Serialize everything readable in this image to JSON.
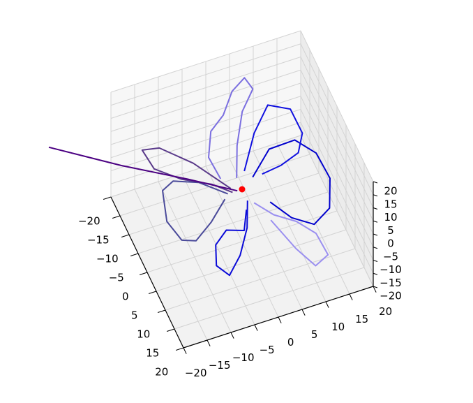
{
  "chart_data": {
    "type": "line3d",
    "xlim": [
      -20,
      20
    ],
    "ylim": [
      -20,
      20
    ],
    "zlim": [
      -20,
      20
    ],
    "xticks": [
      {
        "value": -20,
        "label": "−20"
      },
      {
        "value": -15,
        "label": "−15"
      },
      {
        "value": -10,
        "label": "−10"
      },
      {
        "value": -5,
        "label": "−5"
      },
      0,
      5,
      10,
      15,
      20
    ],
    "yticks": [
      {
        "value": -20,
        "label": "−20"
      },
      {
        "value": -15,
        "label": "−15"
      },
      {
        "value": -10,
        "label": "−10"
      },
      {
        "value": -5,
        "label": "−5"
      },
      0,
      5,
      10,
      15,
      20
    ],
    "zticks": [
      {
        "value": -20,
        "label": "−20"
      },
      {
        "value": -15,
        "label": "−15"
      },
      {
        "value": -10,
        "label": "−10"
      },
      {
        "value": -5,
        "label": "−5"
      },
      0,
      5,
      10,
      15,
      20
    ],
    "grid": true,
    "series": [
      {
        "color": "#0000cd",
        "x": [
          3,
          8,
          13,
          16,
          17,
          15,
          11,
          7,
          4
        ],
        "y": [
          -2,
          -6,
          -5,
          -1,
          4,
          9,
          11,
          9,
          5
        ],
        "z": [
          0,
          2,
          4,
          3,
          0,
          -3,
          -4,
          -2,
          0
        ]
      },
      {
        "color": "#0a0ad8",
        "x": [
          0,
          -2,
          -5,
          -8,
          -10,
          -9,
          -6,
          -3,
          -1
        ],
        "y": [
          3,
          8,
          12,
          14,
          12,
          9,
          7,
          9,
          5
        ],
        "z": [
          0,
          -2,
          -5,
          -8,
          -6,
          -3,
          -2,
          -1,
          0
        ]
      },
      {
        "color": "#4a4a9a",
        "x": [
          -3,
          -8,
          -13,
          -16,
          -17,
          -15,
          -12,
          -8,
          -4
        ],
        "y": [
          0,
          -3,
          -4,
          -2,
          3,
          6,
          6,
          4,
          1
        ],
        "z": [
          0,
          3,
          5,
          6,
          2,
          -2,
          -4,
          -2,
          0
        ]
      },
      {
        "color": "#7b6fe0",
        "x": [
          0,
          2,
          5,
          8,
          7,
          4,
          1,
          -2,
          -4,
          -3
        ],
        "y": [
          -3,
          -8,
          -13,
          -15,
          -17,
          -16,
          -13,
          -12,
          -8,
          -4
        ],
        "z": [
          0,
          4,
          8,
          12,
          14,
          12,
          9,
          6,
          3,
          0
        ]
      },
      {
        "color": "#9a8ff0",
        "x": [
          1,
          4,
          8,
          11,
          12,
          9,
          6,
          3
        ],
        "y": [
          4,
          7,
          9,
          12,
          16,
          17,
          14,
          8
        ],
        "z": [
          0,
          -2,
          -4,
          -6,
          -9,
          -10,
          -6,
          -2
        ]
      },
      {
        "color": "#1010e0",
        "x": [
          2,
          6,
          10,
          14,
          15,
          13,
          9,
          5
        ],
        "y": [
          -4,
          -9,
          -12,
          -10,
          -6,
          -3,
          -2,
          -2
        ],
        "z": [
          0,
          5,
          9,
          8,
          4,
          2,
          1,
          0
        ]
      },
      {
        "color": "#5a3a8a",
        "x": [
          -2,
          -8,
          -14,
          -18,
          -17,
          -12,
          -6,
          -2
        ],
        "y": [
          -1,
          -6,
          -9,
          -8,
          -4,
          -2,
          -1,
          0
        ],
        "z": [
          0,
          6,
          11,
          14,
          12,
          8,
          4,
          0
        ]
      },
      {
        "color": "#4b0082",
        "x": [
          -1,
          -10,
          -22,
          -35
        ],
        "y": [
          0,
          -4,
          -9,
          -15
        ],
        "z": [
          0,
          4,
          9,
          15
        ]
      }
    ],
    "points": [
      {
        "x": 0,
        "y": 0,
        "z": 0,
        "color": "#ff0000"
      }
    ]
  }
}
